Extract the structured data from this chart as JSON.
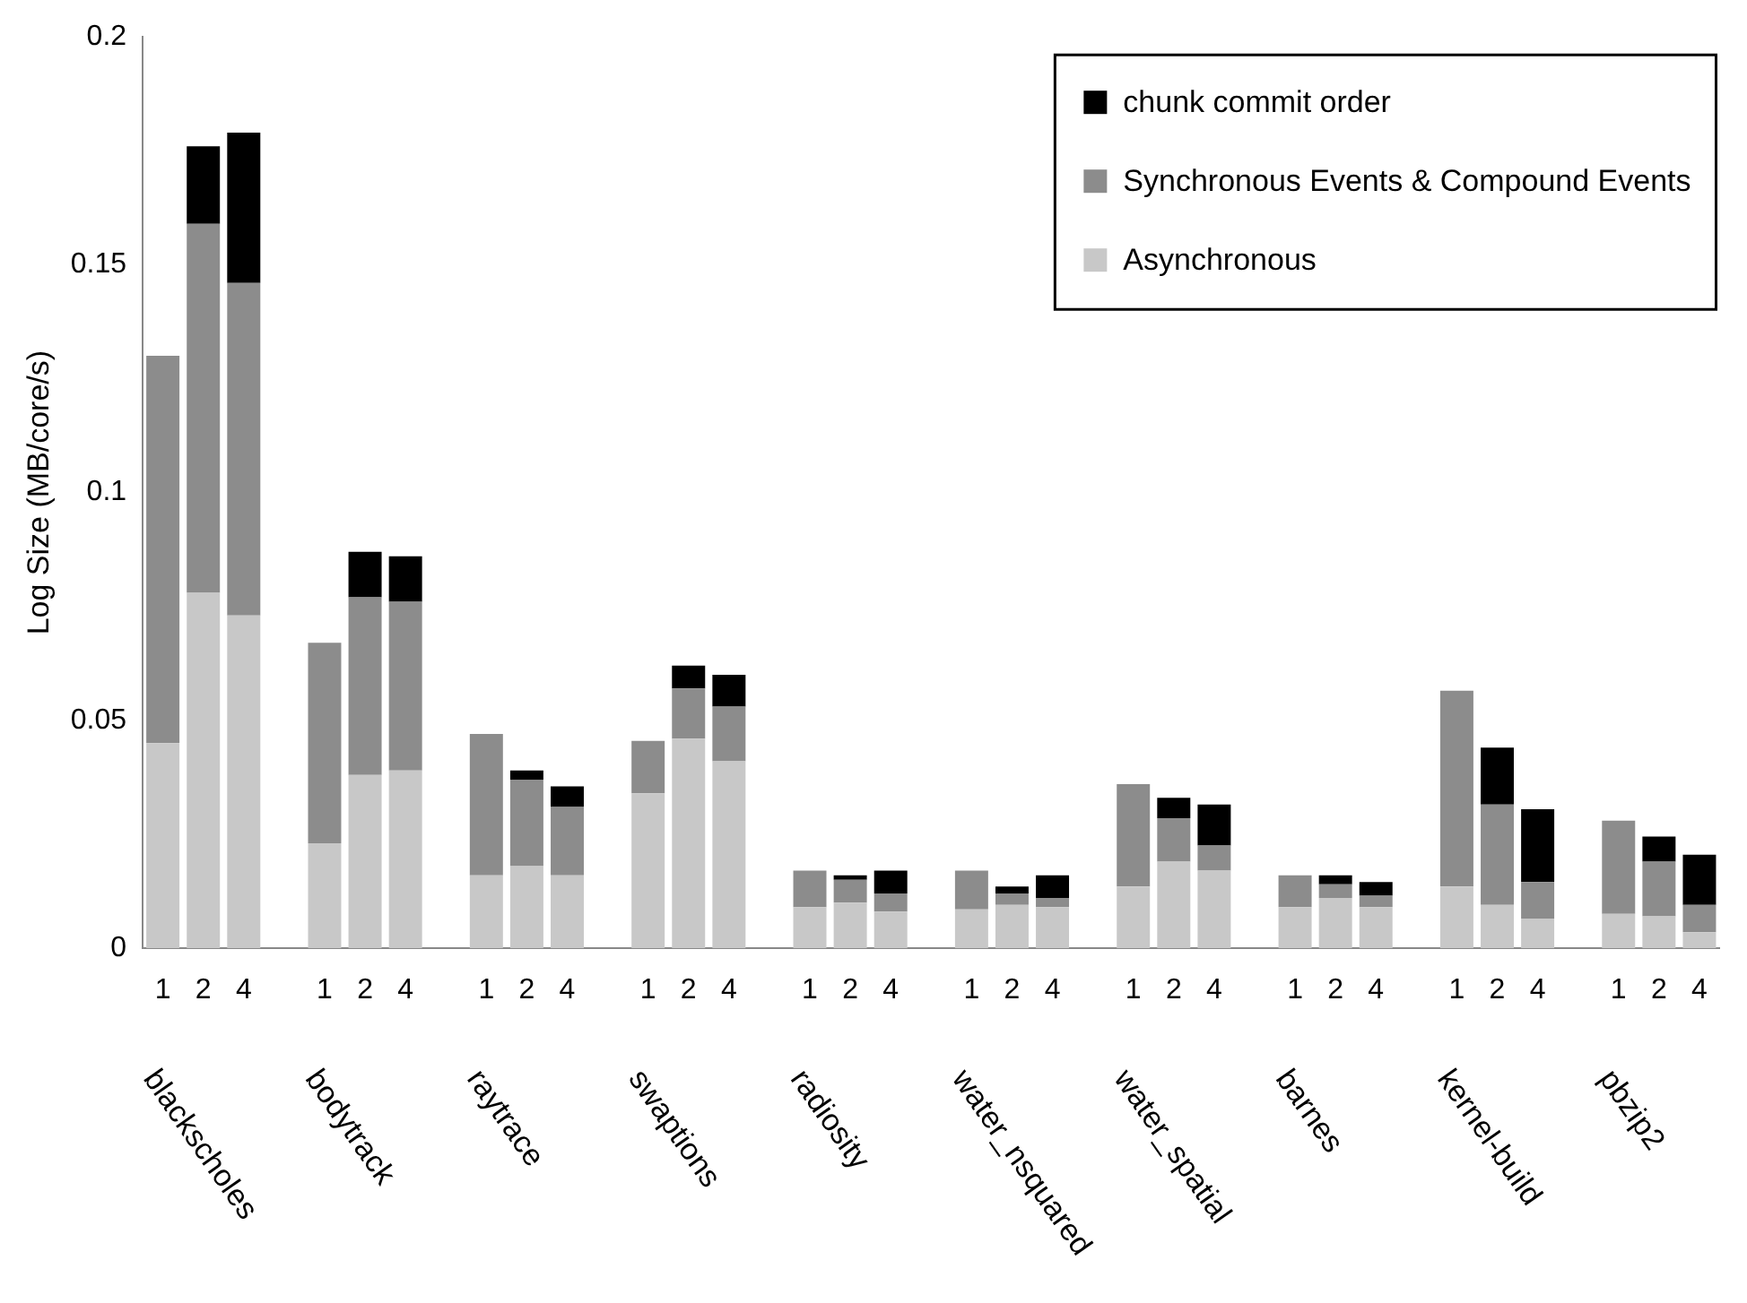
{
  "chart_data": {
    "type": "bar",
    "stacked": true,
    "ylabel": "Log Size (MB/core/s)",
    "categories": [
      "1",
      "2",
      "4",
      "1",
      "2",
      "4",
      "1",
      "2",
      "4",
      "1",
      "2",
      "4",
      "1",
      "2",
      "4",
      "1",
      "2",
      "4",
      "1",
      "2",
      "4",
      "1",
      "2",
      "4",
      "1",
      "2",
      "4",
      "1",
      "2",
      "4"
    ],
    "annotations": [
      "blackscholes",
      "bodytrack",
      "raytrace",
      "swaptions",
      "radiosity",
      "water_nsquared",
      "water_spatial",
      "barnes",
      "kernel-build",
      "pbzip2"
    ],
    "series": [
      {
        "name": "Asynchronous",
        "color": "#c8c8c8",
        "values": [
          0.045,
          0.078,
          0.073,
          0.023,
          0.038,
          0.039,
          0.016,
          0.018,
          0.016,
          0.034,
          0.046,
          0.041,
          0.009,
          0.01,
          0.008,
          0.0085,
          0.0095,
          0.009,
          0.0135,
          0.019,
          0.017,
          0.009,
          0.011,
          0.009,
          0.0135,
          0.0095,
          0.0065,
          0.0075,
          0.007,
          0.0035
        ]
      },
      {
        "name": "Synchronous Events & Compound Events",
        "color": "#8c8c8c",
        "values": [
          0.085,
          0.081,
          0.073,
          0.044,
          0.039,
          0.037,
          0.031,
          0.019,
          0.015,
          0.0115,
          0.011,
          0.012,
          0.008,
          0.005,
          0.004,
          0.0085,
          0.0025,
          0.002,
          0.0225,
          0.0095,
          0.0055,
          0.007,
          0.003,
          0.0025,
          0.043,
          0.022,
          0.008,
          0.0205,
          0.012,
          0.006
        ]
      },
      {
        "name": "chunk commit order",
        "color": "#000000",
        "values": [
          0,
          0.017,
          0.033,
          0,
          0.01,
          0.01,
          0,
          0.002,
          0.0045,
          0,
          0.005,
          0.007,
          0,
          0.001,
          0.005,
          0,
          0.0015,
          0.005,
          0,
          0.0045,
          0.009,
          0,
          0.002,
          0.003,
          0,
          0.0125,
          0.016,
          0,
          0.0055,
          0.011
        ]
      }
    ],
    "ylim": [
      0,
      0.2
    ],
    "yticks": [
      0,
      0.05,
      0.1,
      0.15,
      0.2
    ],
    "grid": false,
    "legend": "top right"
  }
}
